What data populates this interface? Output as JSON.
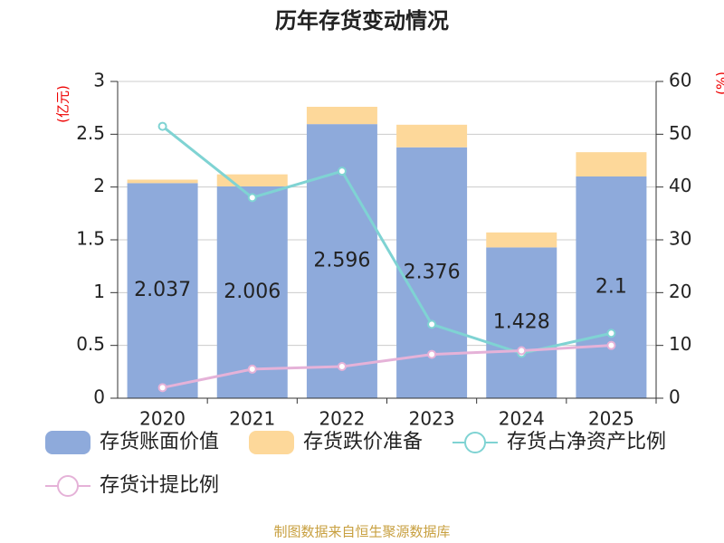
{
  "chart_data": {
    "type": "bar",
    "title": "历年存货变动情况",
    "y_label": "(亿元)",
    "y2_label": "(%)",
    "source": "制图数据来自恒生聚源数据库",
    "categories": [
      "2020",
      "2021",
      "2022",
      "2023",
      "2024",
      "2025"
    ],
    "series": [
      {
        "name": "存货账面价值",
        "type": "bar",
        "color": "#8eaadb",
        "values": [
          2.037,
          2.006,
          2.596,
          2.376,
          1.428,
          2.1
        ]
      },
      {
        "name": "存货跌价准备",
        "type": "bar",
        "color": "#fdd89a",
        "values": [
          0.033,
          0.114,
          0.164,
          0.214,
          0.142,
          0.23
        ]
      },
      {
        "name": "存货占净资产比例",
        "type": "line",
        "axis": "y2",
        "color": "#7fd3d3",
        "values": [
          51.5,
          38,
          43,
          14,
          8.5,
          12.3
        ]
      },
      {
        "name": "存货计提比例",
        "type": "line",
        "axis": "y2",
        "color": "#e5b2d8",
        "values": [
          2,
          5.5,
          6,
          8.3,
          9,
          10
        ]
      }
    ],
    "ylim": [
      0,
      3
    ],
    "yticks": [
      0,
      0.5,
      1,
      1.5,
      2,
      2.5,
      3
    ],
    "y2lim": [
      0,
      60
    ],
    "y2ticks": [
      0,
      10,
      20,
      30,
      40,
      50,
      60
    ],
    "grid": true
  }
}
